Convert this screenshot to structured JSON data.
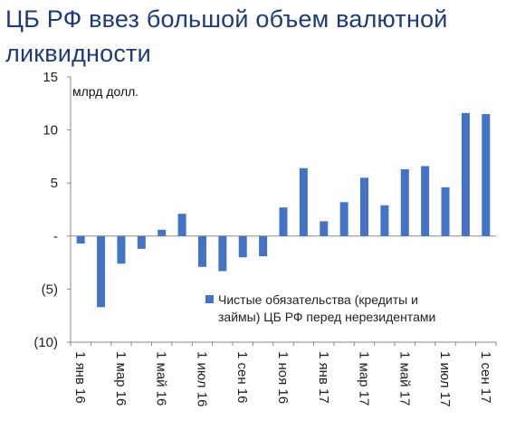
{
  "title": "ЦБ РФ ввез большой объем валютной ликвидности",
  "chart_data": {
    "type": "bar",
    "unit_label": "млрд долл.",
    "ylim": [
      -10,
      15
    ],
    "yticks": [
      {
        "value": 15,
        "label": "15"
      },
      {
        "value": 10,
        "label": "10"
      },
      {
        "value": 5,
        "label": "5"
      },
      {
        "value": 0,
        "label": "-"
      },
      {
        "value": -5,
        "label": "(5)"
      },
      {
        "value": -10,
        "label": "(10)"
      }
    ],
    "categories": [
      "янв 16",
      "фев 16",
      "мар 16",
      "апр 16",
      "май 16",
      "июн 16",
      "июл 16",
      "авг 16",
      "сен 16",
      "окт 16",
      "ноя 16",
      "дек 16",
      "янв 17",
      "фев 17",
      "мар 17",
      "апр 17",
      "май 17",
      "июн 17",
      "июл 17",
      "авг 17",
      "сен 17"
    ],
    "xtick_labels": [
      "1 янв 16",
      "1 мар 16",
      "1 май 16",
      "1 июл 16",
      "1 сен 16",
      "1 ноя 16",
      "1 янв 17",
      "1 мар 17",
      "1 май 17",
      "1 июл 17",
      "1 сен 17"
    ],
    "series": [
      {
        "name": "Чистые обязательства (кредиты и займы) ЦБ РФ перед нерезидентами",
        "color": "#4472c4",
        "values": [
          -0.7,
          -6.7,
          -2.6,
          -1.2,
          0.6,
          2.1,
          -2.9,
          -3.3,
          -2.0,
          -1.9,
          2.7,
          6.4,
          1.4,
          3.2,
          5.5,
          2.9,
          6.3,
          6.6,
          4.6,
          11.6,
          11.5
        ]
      }
    ],
    "legend": {
      "line1": "Чистые обязательства (кредиты и",
      "line2": "займы) ЦБ РФ перед нерезидентами"
    },
    "grid": false
  }
}
